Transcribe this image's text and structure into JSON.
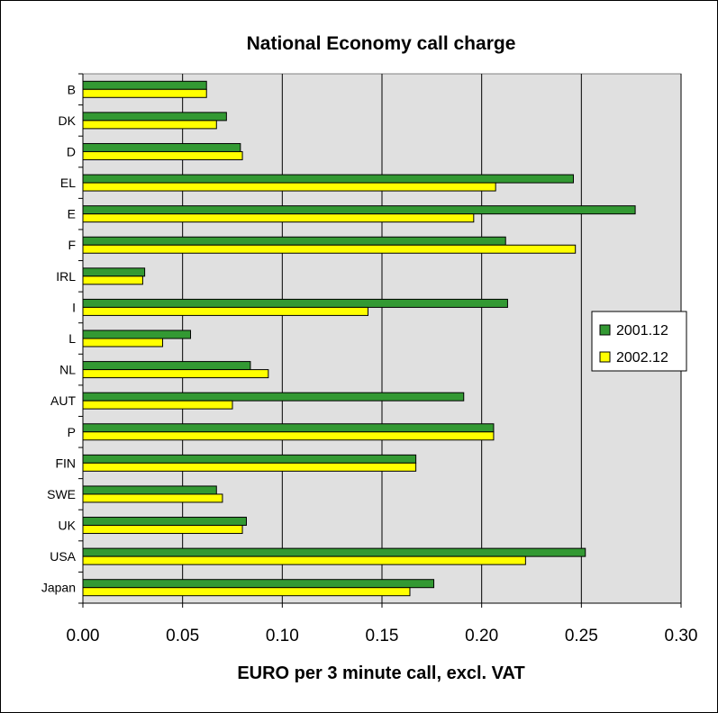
{
  "chart_data": {
    "type": "bar",
    "orientation": "horizontal",
    "title": "National Economy call charge",
    "xlabel": "EURO per 3 minute call, excl. VAT",
    "ylabel": "",
    "xlim": [
      0,
      0.3
    ],
    "x_ticks": [
      "0.00",
      "0.05",
      "0.10",
      "0.15",
      "0.20",
      "0.25",
      "0.30"
    ],
    "grid": "vertical",
    "legend_position": "right",
    "categories": [
      "B",
      "DK",
      "D",
      "EL",
      "E",
      "F",
      "IRL",
      "I",
      "L",
      "NL",
      "AUT",
      "P",
      "FIN",
      "SWE",
      "UK",
      "USA",
      "Japan"
    ],
    "series": [
      {
        "name": "2001.12",
        "color": "#339933",
        "values": [
          0.062,
          0.072,
          0.079,
          0.246,
          0.277,
          0.212,
          0.031,
          0.213,
          0.054,
          0.084,
          0.191,
          0.206,
          0.167,
          0.067,
          0.082,
          0.252,
          0.176
        ]
      },
      {
        "name": "2002.12",
        "color": "#ffff00",
        "values": [
          0.062,
          0.067,
          0.08,
          0.207,
          0.196,
          0.247,
          0.03,
          0.143,
          0.04,
          0.093,
          0.075,
          0.206,
          0.167,
          0.07,
          0.08,
          0.222,
          0.164
        ]
      }
    ],
    "plot_background": "#e0e0e0"
  }
}
